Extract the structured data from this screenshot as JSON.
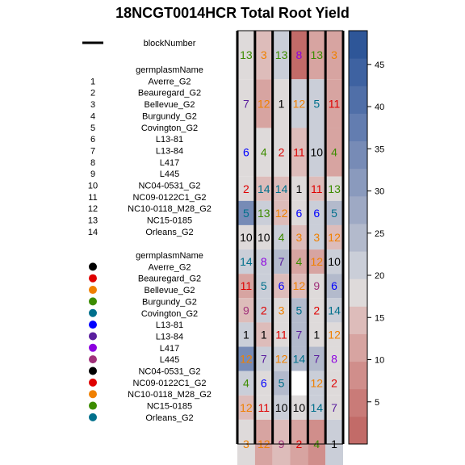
{
  "chart_data": {
    "type": "heatmap",
    "title": "18NCGT0014HCR Total Root Yield",
    "legend_lines": [
      {
        "label": "blockNumber"
      }
    ],
    "number_legend": {
      "heading": "germplasmName",
      "items": [
        "Averre_G2",
        "Beauregard_G2",
        "Bellevue_G2",
        "Burgundy_G2",
        "Covington_G2",
        "L13-81",
        "L13-84",
        "L417",
        "L445",
        "NC04-0531_G2",
        "NC09-0122C1_G2",
        "NC10-0118_M28_G2",
        "NC15-0185",
        "Orleans_G2"
      ]
    },
    "color_legend": {
      "heading": "germplasmName",
      "items": [
        {
          "label": "Averre_G2",
          "color": "#000000"
        },
        {
          "label": "Beauregard_G2",
          "color": "#DF0000"
        },
        {
          "label": "Bellevue_G2",
          "color": "#F08000"
        },
        {
          "label": "Burgundy_G2",
          "color": "#3C8C00"
        },
        {
          "label": "Covington_G2",
          "color": "#00708C"
        },
        {
          "label": "L13-81",
          "color": "#0000FF"
        },
        {
          "label": "L13-84",
          "color": "#5A1E9E"
        },
        {
          "label": "L417",
          "color": "#8C00E0"
        },
        {
          "label": "L445",
          "color": "#A0307A"
        },
        {
          "label": "NC04-0531_G2",
          "color": "#000000"
        },
        {
          "label": "NC09-0122C1_G2",
          "color": "#DF0000"
        },
        {
          "label": "NC10-0118_M28_G2",
          "color": "#F08000"
        },
        {
          "label": "NC15-0185",
          "color": "#3C8C00"
        },
        {
          "label": "Orleans_G2",
          "color": "#00708C"
        }
      ]
    },
    "genotype_colors": {
      "1": "#000000",
      "2": "#DF0000",
      "3": "#F08000",
      "4": "#3C8C00",
      "5": "#00708C",
      "6": "#0000FF",
      "7": "#5A1E9E",
      "8": "#8C00E0",
      "9": "#A0307A",
      "10": "#000000",
      "11": "#DF0000",
      "12": "#F08000",
      "13": "#3C8C00",
      "14": "#00708C"
    },
    "rows": 17,
    "cols": 6,
    "cells": [
      [
        13,
        3,
        13,
        8,
        13,
        3
      ],
      [
        7,
        12,
        1,
        12,
        5,
        11
      ],
      [
        6,
        4,
        2,
        11,
        10,
        4
      ],
      [
        2,
        14,
        14,
        1,
        11,
        13
      ],
      [
        5,
        13,
        12,
        6,
        6,
        5
      ],
      [
        10,
        10,
        4,
        3,
        3,
        12
      ],
      [
        14,
        8,
        7,
        4,
        12,
        10
      ],
      [
        11,
        5,
        6,
        12,
        9,
        6
      ],
      [
        9,
        2,
        3,
        5,
        2,
        14
      ],
      [
        1,
        1,
        11,
        7,
        1,
        12
      ],
      [
        12,
        7,
        12,
        14,
        7,
        8
      ],
      [
        4,
        6,
        5,
        null,
        12,
        2
      ],
      [
        12,
        11,
        10,
        10,
        14,
        7
      ],
      [
        3,
        12,
        9,
        2,
        4,
        1
      ]
    ],
    "yield_values": [
      [
        18,
        16,
        22,
        1,
        13,
        12
      ],
      [
        17,
        10,
        19,
        20,
        21,
        10
      ],
      [
        19,
        17,
        18,
        14,
        22,
        10
      ],
      [
        17,
        16,
        15,
        19,
        15,
        18
      ],
      [
        33,
        21,
        15,
        19,
        20,
        24
      ],
      [
        19,
        19,
        20,
        14,
        20,
        15
      ],
      [
        21,
        20,
        23,
        13,
        11,
        20
      ],
      [
        13,
        21,
        15,
        14,
        18,
        25
      ],
      [
        14,
        21,
        17,
        25,
        17,
        22
      ],
      [
        21,
        16,
        17,
        24,
        19,
        17
      ],
      [
        35,
        22,
        21,
        23,
        23,
        19
      ],
      [
        21,
        18,
        23,
        null,
        20,
        18
      ],
      [
        16,
        17,
        22,
        17,
        20,
        17
      ],
      [
        18,
        13,
        14,
        11,
        9,
        20
      ]
    ],
    "row_spans": [
      2,
      2,
      2,
      1,
      1,
      1,
      1,
      1,
      1,
      1,
      1,
      1,
      1,
      2
    ],
    "blocks": [
      [
        0,
        1,
        2
      ],
      [
        3,
        4,
        5
      ]
    ],
    "colorbar": {
      "ticks": [
        5,
        10,
        15,
        20,
        25,
        30,
        35,
        40,
        45
      ],
      "range": [
        0,
        49
      ],
      "colors": [
        "#C26B68",
        "#C97B78",
        "#D08E8B",
        "#D7A4A1",
        "#DDBCBA",
        "#DEDADA",
        "#CACED8",
        "#B3BACC",
        "#9EA9C4",
        "#8A9ABD",
        "#778BB6",
        "#637DB0",
        "#506FA8",
        "#3E62A1",
        "#2E5698"
      ]
    }
  }
}
